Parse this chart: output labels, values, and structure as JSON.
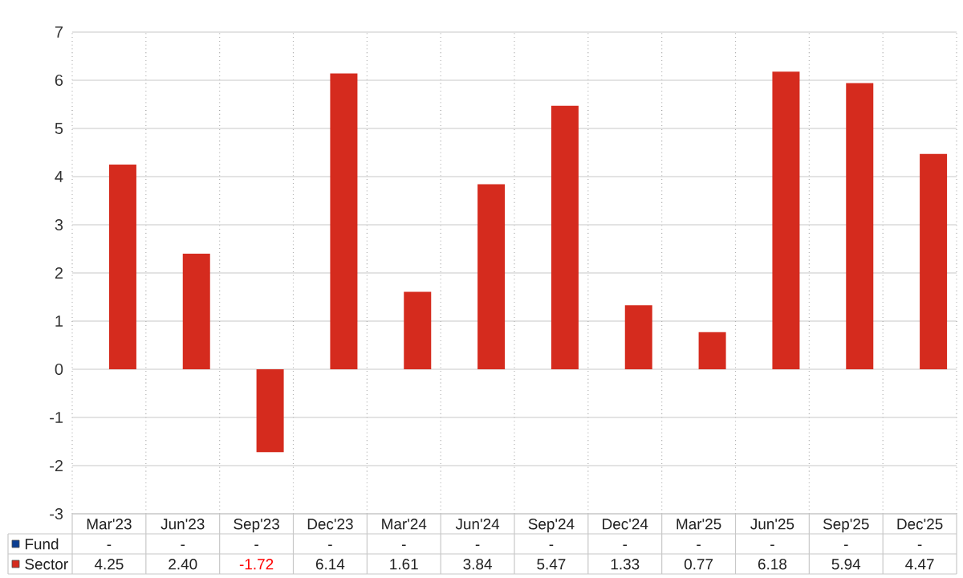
{
  "chart_data": {
    "type": "bar",
    "categories": [
      "Mar'23",
      "Jun'23",
      "Sep'23",
      "Dec'23",
      "Mar'24",
      "Jun'24",
      "Sep'24",
      "Dec'24",
      "Mar'25",
      "Jun'25",
      "Sep'25",
      "Dec'25"
    ],
    "series": [
      {
        "name": "Fund",
        "color": "#0b3d91",
        "values": [
          null,
          null,
          null,
          null,
          null,
          null,
          null,
          null,
          null,
          null,
          null,
          null
        ],
        "value_labels": [
          "-",
          "-",
          "-",
          "-",
          "-",
          "-",
          "-",
          "-",
          "-",
          "-",
          "-",
          "-"
        ]
      },
      {
        "name": "Sector",
        "color": "#d52b1e",
        "values": [
          4.25,
          2.4,
          -1.72,
          6.14,
          1.61,
          3.84,
          5.47,
          1.33,
          0.77,
          6.18,
          5.94,
          4.47
        ],
        "value_labels": [
          "4.25",
          "2.40",
          "-1.72",
          "6.14",
          "1.61",
          "3.84",
          "5.47",
          "1.33",
          "0.77",
          "6.18",
          "5.94",
          "4.47"
        ]
      }
    ],
    "ylim": [
      -3,
      7
    ],
    "yticks": [
      -3,
      -2,
      -1,
      0,
      1,
      2,
      3,
      4,
      5,
      6,
      7
    ],
    "grid": true,
    "legend": "bottom"
  }
}
